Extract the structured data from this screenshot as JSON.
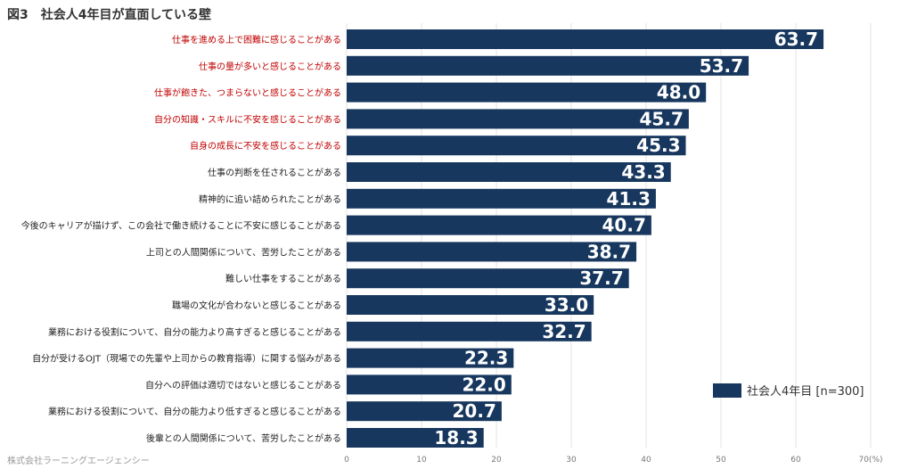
{
  "title": "図3　社会人4年目が直面している壁",
  "credit": "株式会社ラーニングエージェンシー",
  "chart_data": {
    "type": "bar",
    "orientation": "horizontal",
    "categories": [
      "仕事を進める上で困難に感じることがある",
      "仕事の量が多いと感じることがある",
      "仕事が飽きた、つまらないと感じることがある",
      "自分の知識・スキルに不安を感じることがある",
      "自身の成長に不安を感じることがある",
      "仕事の判断を任されることがある",
      "精神的に追い詰められたことがある",
      "今後のキャリアが描けず、この会社で働き続けることに不安に感じることがある",
      "上司との人間関係について、苦労したことがある",
      "難しい仕事をすることがある",
      "職場の文化が合わないと感じることがある",
      "業務における役割について、自分の能力より高すぎると感じることがある",
      "自分が受けるOJT（現場での先輩や上司からの教育指導）に関する悩みがある",
      "自分への評価は適切ではないと感じることがある",
      "業務における役割について、自分の能力より低すぎると感じることがある",
      "後輩との人間関係について、苦労したことがある"
    ],
    "highlighted": [
      true,
      true,
      true,
      true,
      true,
      false,
      false,
      false,
      false,
      false,
      false,
      false,
      false,
      false,
      false,
      false
    ],
    "series": [
      {
        "name": "社会人4年目 [n=300]",
        "values": [
          63.7,
          53.7,
          48.0,
          45.7,
          45.3,
          43.3,
          41.3,
          40.7,
          38.7,
          37.7,
          33.0,
          32.7,
          22.3,
          22.0,
          20.7,
          18.3
        ],
        "labels": [
          "63.7",
          "53.7",
          "48.0",
          "45.7",
          "45.3",
          "43.3",
          "41.3",
          "40.7",
          "38.7",
          "37.7",
          "33.0",
          "32.7",
          "22.3",
          "22.0",
          "20.7",
          "18.3"
        ]
      }
    ],
    "xlim": [
      0,
      70
    ],
    "ticks": [
      "0",
      "10",
      "20",
      "30",
      "40",
      "50",
      "60",
      "70(%)"
    ],
    "tick_values": [
      0,
      10,
      20,
      30,
      40,
      50,
      60,
      70
    ],
    "grid": true,
    "legend_position": "bottom-right",
    "colors": {
      "bar": "#17375e",
      "highlight_text": "#c00000",
      "normal_text": "#222222",
      "grid": "#e3e3e3"
    }
  }
}
